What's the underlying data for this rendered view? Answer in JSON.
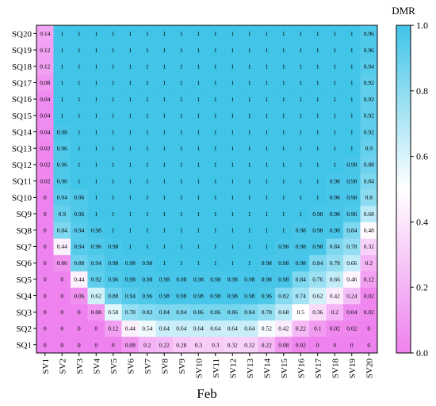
{
  "chart_data": {
    "type": "heatmap",
    "xlabel": "Feb",
    "x_categories": [
      "SV1",
      "SV2",
      "SV3",
      "SV4",
      "SV5",
      "SV6",
      "SV7",
      "SV8",
      "SV9",
      "SV10",
      "SV11",
      "SV12",
      "SV13",
      "SV14",
      "SV15",
      "SV16",
      "SV17",
      "SV18",
      "SV19",
      "SV20"
    ],
    "y_categories": [
      "SQ1",
      "SQ2",
      "SQ3",
      "SQ4",
      "SQ5",
      "SQ6",
      "SQ7",
      "SQ8",
      "SQ9",
      "SQ10",
      "SQ11",
      "SQ12",
      "SQ13",
      "SQ14",
      "SQ15",
      "SQ16",
      "SQ17",
      "SQ18",
      "SQ19",
      "SQ20"
    ],
    "values": [
      [
        "0",
        "0",
        "0",
        "0",
        "0",
        "0.08",
        "0.2",
        "0.22",
        "0.28",
        "0.3",
        "0.3",
        "0.32",
        "0.32",
        "0.22",
        "0.08",
        "0.02",
        "0",
        "0",
        "0",
        "0"
      ],
      [
        "0",
        "0",
        "0",
        "0",
        "0.12",
        "0.44",
        "0.54",
        "0.64",
        "0.64",
        "0.64",
        "0.64",
        "0.64",
        "0.64",
        "0.52",
        "0.42",
        "0.22",
        "0.1",
        "0.02",
        "0.02",
        "0"
      ],
      [
        "0",
        "0",
        "0",
        "0.08",
        "0.58",
        "0.78",
        "0.82",
        "0.84",
        "0.84",
        "0.86",
        "0.86",
        "0.86",
        "0.84",
        "0.78",
        "0.68",
        "0.5",
        "0.36",
        "0.2",
        "0.04",
        "0.02"
      ],
      [
        "0",
        "0",
        "0.06",
        "0.62",
        "0.88",
        "0.94",
        "0.96",
        "0.98",
        "0.98",
        "0.98",
        "0.98",
        "0.98",
        "0.98",
        "0.96",
        "0.82",
        "0.74",
        "0.62",
        "0.42",
        "0.24",
        "0.02"
      ],
      [
        "0",
        "0",
        "0.44",
        "0.92",
        "0.96",
        "0.98",
        "0.98",
        "0.98",
        "0.98",
        "0.98",
        "0.98",
        "0.98",
        "0.98",
        "0.98",
        "0.98",
        "0.84",
        "0.76",
        "0.66",
        "0.46",
        "0.12"
      ],
      [
        "0",
        "0.06",
        "0.88",
        "0.94",
        "0.98",
        "0.98",
        "0.98",
        "1",
        "1",
        "1",
        "1",
        "1",
        "1",
        "0.98",
        "0.98",
        "0.98",
        "0.84",
        "0.78",
        "0.66",
        "0.2"
      ],
      [
        "0",
        "0.44",
        "0.94",
        "0.96",
        "0.98",
        "1",
        "1",
        "1",
        "1",
        "1",
        "1",
        "1",
        "1",
        "1",
        "0.98",
        "0.98",
        "0.98",
        "0.84",
        "0.78",
        "0.32"
      ],
      [
        "0",
        "0.84",
        "0.94",
        "0.98",
        "1",
        "1",
        "1",
        "1",
        "1",
        "1",
        "1",
        "1",
        "1",
        "1",
        "1",
        "0.98",
        "0.98",
        "0.98",
        "0.84",
        "0.48"
      ],
      [
        "0",
        "0.9",
        "0.96",
        "1",
        "1",
        "1",
        "1",
        "1",
        "1",
        "1",
        "1",
        "1",
        "1",
        "1",
        "1",
        "1",
        "0.98",
        "0.98",
        "0.96",
        "0.68"
      ],
      [
        "0",
        "0.94",
        "0.96",
        "1",
        "1",
        "1",
        "1",
        "1",
        "1",
        "1",
        "1",
        "1",
        "1",
        "1",
        "1",
        "1",
        "1",
        "0.98",
        "0.98",
        "0.8"
      ],
      [
        "0.02",
        "0.96",
        "1",
        "1",
        "1",
        "1",
        "1",
        "1",
        "1",
        "1",
        "1",
        "1",
        "1",
        "1",
        "1",
        "1",
        "1",
        "0.98",
        "0.98",
        "0.84"
      ],
      [
        "0.02",
        "0.96",
        "1",
        "1",
        "1",
        "1",
        "1",
        "1",
        "1",
        "1",
        "1",
        "1",
        "1",
        "1",
        "1",
        "1",
        "1",
        "1",
        "0.98",
        "0.88"
      ],
      [
        "0.02",
        "0.96",
        "1",
        "1",
        "1",
        "1",
        "1",
        "1",
        "1",
        "1",
        "1",
        "1",
        "1",
        "1",
        "1",
        "1",
        "1",
        "1",
        "1",
        "0.9"
      ],
      [
        "0.04",
        "0.98",
        "1",
        "1",
        "1",
        "1",
        "1",
        "1",
        "1",
        "1",
        "1",
        "1",
        "1",
        "1",
        "1",
        "1",
        "1",
        "1",
        "1",
        "0.92"
      ],
      [
        "0.04",
        "1",
        "1",
        "1",
        "1",
        "1",
        "1",
        "1",
        "1",
        "1",
        "1",
        "1",
        "1",
        "1",
        "1",
        "1",
        "1",
        "1",
        "1",
        "0.92"
      ],
      [
        "0.04",
        "1",
        "1",
        "1",
        "1",
        "1",
        "1",
        "1",
        "1",
        "1",
        "1",
        "1",
        "1",
        "1",
        "1",
        "1",
        "1",
        "1",
        "1",
        "0.92"
      ],
      [
        "0.08",
        "1",
        "1",
        "1",
        "1",
        "1",
        "1",
        "1",
        "1",
        "1",
        "1",
        "1",
        "1",
        "1",
        "1",
        "1",
        "1",
        "1",
        "1",
        "0.92"
      ],
      [
        "0.12",
        "1",
        "1",
        "1",
        "1",
        "1",
        "1",
        "1",
        "1",
        "1",
        "1",
        "1",
        "1",
        "1",
        "1",
        "1",
        "1",
        "1",
        "1",
        "0.94"
      ],
      [
        "0.12",
        "1",
        "1",
        "1",
        "1",
        "1",
        "1",
        "1",
        "1",
        "1",
        "1",
        "1",
        "1",
        "1",
        "1",
        "1",
        "1",
        "1",
        "1",
        "0.96"
      ],
      [
        "0.14",
        "1",
        "1",
        "1",
        "1",
        "1",
        "1",
        "1",
        "1",
        "1",
        "1",
        "1",
        "1",
        "1",
        "1",
        "1",
        "1",
        "1",
        "1",
        "0.96"
      ]
    ],
    "colorbar": {
      "title": "DMR",
      "min": 0.0,
      "max": 1.0,
      "ticks": [
        "0.0",
        "0.2",
        "0.4",
        "0.6",
        "0.8",
        "1.0"
      ],
      "colors": [
        "#ee82ee",
        "#ffffff",
        "#40c4e8"
      ]
    },
    "grid": false
  }
}
